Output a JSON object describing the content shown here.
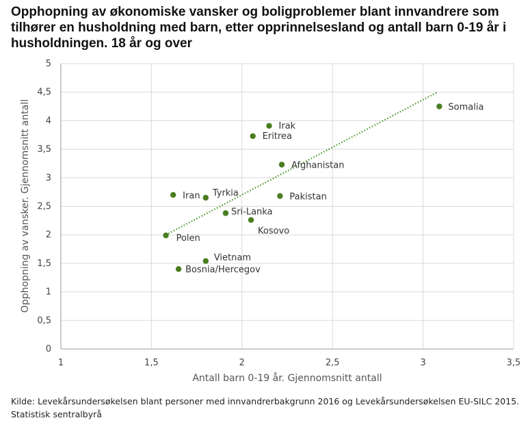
{
  "title": "Opphopning av økonomiske vansker og boligproblemer blant innvandrere som tilhører en husholdning med barn, etter opprinnelsesland og antall barn 0-19 år i husholdningen. 18 år og over",
  "source": "Kilde: Levekårsundersøkelsen blant personer med innvandrerbakgrunn 2016 og Levekårsundersøkelsen EU-SILC 2015. Statistisk sentralbyrå",
  "chart_data": {
    "type": "scatter",
    "xlabel": "Antall barn 0-19 år. Gjennomsnitt antall",
    "ylabel": "Opphopning av vansker. Gjennomsnitt antall",
    "xlim": [
      1,
      3.5
    ],
    "ylim": [
      0,
      5
    ],
    "xticks": [
      1,
      1.5,
      2,
      2.5,
      3,
      3.5
    ],
    "xtick_labels": [
      "1",
      "1,5",
      "2",
      "2,5",
      "3",
      "3,5"
    ],
    "yticks": [
      0,
      0.5,
      1,
      1.5,
      2,
      2.5,
      3,
      3.5,
      4,
      4.5,
      5
    ],
    "ytick_labels": [
      "0",
      "0,5",
      "1",
      "1,5",
      "2",
      "2,5",
      "3",
      "3,5",
      "4",
      "4,5",
      "5"
    ],
    "grid": true,
    "marker_color": "#4a7d1f",
    "trendline": {
      "style": "dotted",
      "color": "#4a9a2a",
      "x": [
        1.58,
        3.08
      ],
      "y": [
        2.0,
        4.5
      ]
    },
    "points": [
      {
        "label": "Somalia",
        "x": 3.09,
        "y": 4.25
      },
      {
        "label": "Irak",
        "x": 2.15,
        "y": 3.91
      },
      {
        "label": "Eritrea",
        "x": 2.06,
        "y": 3.73
      },
      {
        "label": "Afghanistan",
        "x": 2.22,
        "y": 3.23
      },
      {
        "label": "Iran",
        "x": 1.62,
        "y": 2.7
      },
      {
        "label": "Tyrkia",
        "x": 1.8,
        "y": 2.65
      },
      {
        "label": "Pakistan",
        "x": 2.21,
        "y": 2.68
      },
      {
        "label": "Sri-Lanka",
        "x": 1.91,
        "y": 2.38
      },
      {
        "label": "Kosovo",
        "x": 2.05,
        "y": 2.26
      },
      {
        "label": "Polen",
        "x": 1.58,
        "y": 1.99
      },
      {
        "label": "Vietnam",
        "x": 1.8,
        "y": 1.54
      },
      {
        "label": "Bosnia/Hercegov",
        "x": 1.65,
        "y": 1.4
      }
    ]
  }
}
